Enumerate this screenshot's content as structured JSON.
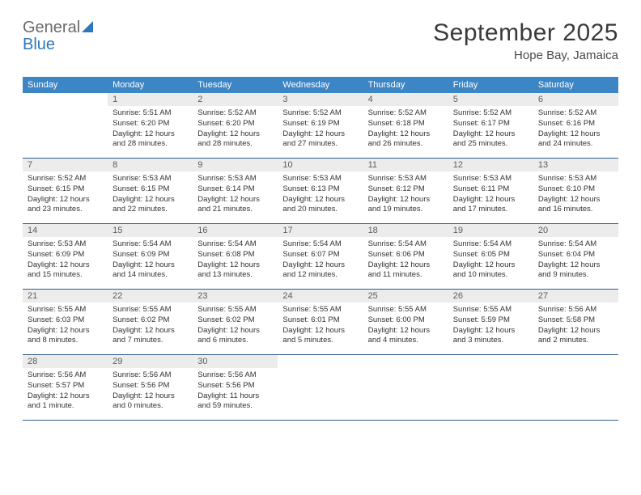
{
  "logo": {
    "general": "General",
    "blue": "Blue"
  },
  "title": {
    "month": "September 2025",
    "location": "Hope Bay, Jamaica"
  },
  "colors": {
    "header_bg": "#3d86c6",
    "header_text": "#ffffff",
    "daynum_bg": "#ececec",
    "daynum_text": "#5c5c5c",
    "week_border": "#2e5f8f",
    "body_text": "#333333",
    "logo_gray": "#6a6a6a",
    "logo_blue": "#2e77b8",
    "title_color": "#3a3a3a"
  },
  "weekdays": [
    "Sunday",
    "Monday",
    "Tuesday",
    "Wednesday",
    "Thursday",
    "Friday",
    "Saturday"
  ],
  "weeks": [
    [
      {
        "n": "",
        "sunrise": "",
        "sunset": "",
        "daylight": ""
      },
      {
        "n": "1",
        "sunrise": "Sunrise: 5:51 AM",
        "sunset": "Sunset: 6:20 PM",
        "daylight": "Daylight: 12 hours and 28 minutes."
      },
      {
        "n": "2",
        "sunrise": "Sunrise: 5:52 AM",
        "sunset": "Sunset: 6:20 PM",
        "daylight": "Daylight: 12 hours and 28 minutes."
      },
      {
        "n": "3",
        "sunrise": "Sunrise: 5:52 AM",
        "sunset": "Sunset: 6:19 PM",
        "daylight": "Daylight: 12 hours and 27 minutes."
      },
      {
        "n": "4",
        "sunrise": "Sunrise: 5:52 AM",
        "sunset": "Sunset: 6:18 PM",
        "daylight": "Daylight: 12 hours and 26 minutes."
      },
      {
        "n": "5",
        "sunrise": "Sunrise: 5:52 AM",
        "sunset": "Sunset: 6:17 PM",
        "daylight": "Daylight: 12 hours and 25 minutes."
      },
      {
        "n": "6",
        "sunrise": "Sunrise: 5:52 AM",
        "sunset": "Sunset: 6:16 PM",
        "daylight": "Daylight: 12 hours and 24 minutes."
      }
    ],
    [
      {
        "n": "7",
        "sunrise": "Sunrise: 5:52 AM",
        "sunset": "Sunset: 6:15 PM",
        "daylight": "Daylight: 12 hours and 23 minutes."
      },
      {
        "n": "8",
        "sunrise": "Sunrise: 5:53 AM",
        "sunset": "Sunset: 6:15 PM",
        "daylight": "Daylight: 12 hours and 22 minutes."
      },
      {
        "n": "9",
        "sunrise": "Sunrise: 5:53 AM",
        "sunset": "Sunset: 6:14 PM",
        "daylight": "Daylight: 12 hours and 21 minutes."
      },
      {
        "n": "10",
        "sunrise": "Sunrise: 5:53 AM",
        "sunset": "Sunset: 6:13 PM",
        "daylight": "Daylight: 12 hours and 20 minutes."
      },
      {
        "n": "11",
        "sunrise": "Sunrise: 5:53 AM",
        "sunset": "Sunset: 6:12 PM",
        "daylight": "Daylight: 12 hours and 19 minutes."
      },
      {
        "n": "12",
        "sunrise": "Sunrise: 5:53 AM",
        "sunset": "Sunset: 6:11 PM",
        "daylight": "Daylight: 12 hours and 17 minutes."
      },
      {
        "n": "13",
        "sunrise": "Sunrise: 5:53 AM",
        "sunset": "Sunset: 6:10 PM",
        "daylight": "Daylight: 12 hours and 16 minutes."
      }
    ],
    [
      {
        "n": "14",
        "sunrise": "Sunrise: 5:53 AM",
        "sunset": "Sunset: 6:09 PM",
        "daylight": "Daylight: 12 hours and 15 minutes."
      },
      {
        "n": "15",
        "sunrise": "Sunrise: 5:54 AM",
        "sunset": "Sunset: 6:09 PM",
        "daylight": "Daylight: 12 hours and 14 minutes."
      },
      {
        "n": "16",
        "sunrise": "Sunrise: 5:54 AM",
        "sunset": "Sunset: 6:08 PM",
        "daylight": "Daylight: 12 hours and 13 minutes."
      },
      {
        "n": "17",
        "sunrise": "Sunrise: 5:54 AM",
        "sunset": "Sunset: 6:07 PM",
        "daylight": "Daylight: 12 hours and 12 minutes."
      },
      {
        "n": "18",
        "sunrise": "Sunrise: 5:54 AM",
        "sunset": "Sunset: 6:06 PM",
        "daylight": "Daylight: 12 hours and 11 minutes."
      },
      {
        "n": "19",
        "sunrise": "Sunrise: 5:54 AM",
        "sunset": "Sunset: 6:05 PM",
        "daylight": "Daylight: 12 hours and 10 minutes."
      },
      {
        "n": "20",
        "sunrise": "Sunrise: 5:54 AM",
        "sunset": "Sunset: 6:04 PM",
        "daylight": "Daylight: 12 hours and 9 minutes."
      }
    ],
    [
      {
        "n": "21",
        "sunrise": "Sunrise: 5:55 AM",
        "sunset": "Sunset: 6:03 PM",
        "daylight": "Daylight: 12 hours and 8 minutes."
      },
      {
        "n": "22",
        "sunrise": "Sunrise: 5:55 AM",
        "sunset": "Sunset: 6:02 PM",
        "daylight": "Daylight: 12 hours and 7 minutes."
      },
      {
        "n": "23",
        "sunrise": "Sunrise: 5:55 AM",
        "sunset": "Sunset: 6:02 PM",
        "daylight": "Daylight: 12 hours and 6 minutes."
      },
      {
        "n": "24",
        "sunrise": "Sunrise: 5:55 AM",
        "sunset": "Sunset: 6:01 PM",
        "daylight": "Daylight: 12 hours and 5 minutes."
      },
      {
        "n": "25",
        "sunrise": "Sunrise: 5:55 AM",
        "sunset": "Sunset: 6:00 PM",
        "daylight": "Daylight: 12 hours and 4 minutes."
      },
      {
        "n": "26",
        "sunrise": "Sunrise: 5:55 AM",
        "sunset": "Sunset: 5:59 PM",
        "daylight": "Daylight: 12 hours and 3 minutes."
      },
      {
        "n": "27",
        "sunrise": "Sunrise: 5:56 AM",
        "sunset": "Sunset: 5:58 PM",
        "daylight": "Daylight: 12 hours and 2 minutes."
      }
    ],
    [
      {
        "n": "28",
        "sunrise": "Sunrise: 5:56 AM",
        "sunset": "Sunset: 5:57 PM",
        "daylight": "Daylight: 12 hours and 1 minute."
      },
      {
        "n": "29",
        "sunrise": "Sunrise: 5:56 AM",
        "sunset": "Sunset: 5:56 PM",
        "daylight": "Daylight: 12 hours and 0 minutes."
      },
      {
        "n": "30",
        "sunrise": "Sunrise: 5:56 AM",
        "sunset": "Sunset: 5:56 PM",
        "daylight": "Daylight: 11 hours and 59 minutes."
      },
      {
        "n": "",
        "sunrise": "",
        "sunset": "",
        "daylight": ""
      },
      {
        "n": "",
        "sunrise": "",
        "sunset": "",
        "daylight": ""
      },
      {
        "n": "",
        "sunrise": "",
        "sunset": "",
        "daylight": ""
      },
      {
        "n": "",
        "sunrise": "",
        "sunset": "",
        "daylight": ""
      }
    ]
  ]
}
